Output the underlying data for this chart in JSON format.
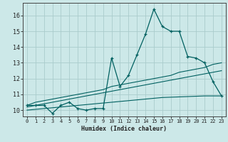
{
  "xlabel": "Humidex (Indice chaleur)",
  "background_color": "#cce8e8",
  "grid_color": "#aacccc",
  "line_color": "#006060",
  "x_data": [
    0,
    1,
    2,
    3,
    4,
    5,
    6,
    7,
    8,
    9,
    10,
    11,
    12,
    13,
    14,
    15,
    16,
    17,
    18,
    19,
    20,
    21,
    22,
    23
  ],
  "y_main": [
    10.3,
    10.3,
    10.3,
    9.8,
    10.3,
    10.5,
    10.1,
    10.0,
    10.1,
    10.1,
    13.3,
    11.5,
    12.2,
    13.5,
    14.8,
    16.4,
    15.3,
    15.0,
    15.0,
    13.4,
    13.3,
    13.0,
    11.8,
    10.9
  ],
  "y_reg1": [
    10.3,
    10.5,
    10.6,
    10.7,
    10.8,
    10.9,
    11.0,
    11.1,
    11.2,
    11.3,
    11.5,
    11.6,
    11.7,
    11.8,
    11.9,
    12.0,
    12.1,
    12.2,
    12.4,
    12.5,
    12.6,
    12.7,
    12.9,
    13.0
  ],
  "y_reg2": [
    10.2,
    10.3,
    10.4,
    10.5,
    10.6,
    10.7,
    10.8,
    10.9,
    11.0,
    11.1,
    11.2,
    11.3,
    11.4,
    11.5,
    11.6,
    11.7,
    11.8,
    11.9,
    12.0,
    12.1,
    12.2,
    12.3,
    12.4,
    12.5
  ],
  "y_bottom": [
    10.0,
    10.05,
    10.1,
    10.15,
    10.2,
    10.25,
    10.3,
    10.35,
    10.4,
    10.45,
    10.5,
    10.55,
    10.6,
    10.65,
    10.7,
    10.75,
    10.8,
    10.82,
    10.84,
    10.86,
    10.88,
    10.9,
    10.9,
    10.9
  ],
  "ylim": [
    9.6,
    16.8
  ],
  "yticks": [
    10,
    11,
    12,
    13,
    14,
    15,
    16
  ],
  "xlim": [
    -0.5,
    23.5
  ],
  "xticks": [
    0,
    1,
    2,
    3,
    4,
    5,
    6,
    7,
    8,
    9,
    10,
    11,
    12,
    13,
    14,
    15,
    16,
    17,
    18,
    19,
    20,
    21,
    22,
    23
  ]
}
